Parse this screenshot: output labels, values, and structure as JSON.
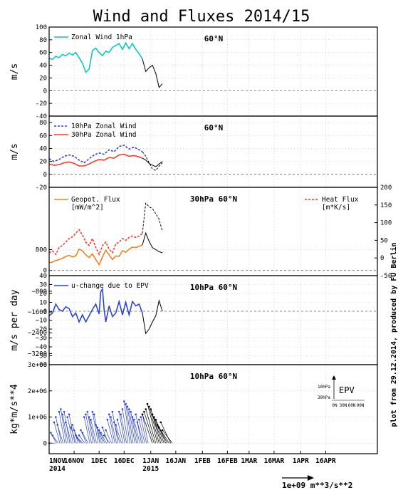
{
  "title": "Wind and Fluxes 2014/15",
  "credit": "plot from 29.12.2014, produced by FU Berlin",
  "x_axis": {
    "tick_labels": [
      "1NOV",
      "16NOV",
      "1DEC",
      "16DEC",
      "1JAN",
      "16JAN",
      "1FEB",
      "16FEB",
      "1MAR",
      "16MAR",
      "1APR",
      "16APR"
    ],
    "tick_days": [
      0,
      15,
      30,
      45,
      61,
      76,
      92,
      107,
      120,
      135,
      151,
      166
    ],
    "year_labels": [
      {
        "text": "2014",
        "day": 0
      },
      {
        "text": "2015",
        "day": 61
      }
    ],
    "xlim_days": [
      0,
      197
    ]
  },
  "colors": {
    "cyan": "#11c4be",
    "blue": "#2e44cc",
    "red": "#f03c32",
    "orange": "#f08222",
    "black": "#000000"
  },
  "reference_arrow": {
    "label": "1e+09  m**3/s**2"
  },
  "chart_data": [
    {
      "id": "p1",
      "type": "line",
      "annotation": "60°N",
      "ylabel": "m/s",
      "ylim": [
        -40,
        100
      ],
      "yticks": [
        -40,
        -20,
        0,
        20,
        40,
        60,
        80,
        100
      ],
      "zero_line": true,
      "legend": [
        {
          "name": "Zonal Wind 1hPa",
          "color": "cyan",
          "dash": false
        }
      ],
      "series": [
        {
          "name": "Zonal Wind 1hPa",
          "color": "cyan",
          "dash": false,
          "x": [
            0,
            2,
            4,
            6,
            8,
            10,
            12,
            14,
            16,
            18,
            20,
            22,
            24,
            26,
            28,
            30,
            32,
            34,
            36,
            38,
            40,
            42,
            44,
            46,
            48,
            50,
            52,
            54,
            56
          ],
          "y": [
            51,
            49,
            54,
            52,
            57,
            55,
            59,
            56,
            60,
            52,
            43,
            29,
            34,
            63,
            67,
            60,
            55,
            62,
            60,
            68,
            71,
            74,
            65,
            75,
            66,
            74,
            65,
            58,
            50
          ]
        },
        {
          "name": "Zonal Wind 1hPa forecast",
          "color": "black",
          "dash": false,
          "x": [
            56,
            58,
            60,
            62,
            64,
            66,
            68
          ],
          "y": [
            50,
            30,
            36,
            40,
            27,
            5,
            11
          ]
        }
      ]
    },
    {
      "id": "p2",
      "type": "line",
      "annotation": "60°N",
      "ylabel": "m/s",
      "ylim": [
        -20,
        90
      ],
      "yticks": [
        -20,
        0,
        20,
        40,
        60,
        80
      ],
      "zero_line": true,
      "legend": [
        {
          "name": "10hPa Zonal Wind",
          "color": "blue",
          "dash": true
        },
        {
          "name": "30hPa Zonal Wind",
          "color": "red",
          "dash": false
        }
      ],
      "series": [
        {
          "name": "10hPa Zonal Wind",
          "color": "blue",
          "dash": true,
          "x": [
            0,
            3,
            6,
            9,
            12,
            15,
            18,
            21,
            24,
            27,
            30,
            33,
            36,
            39,
            42,
            45,
            48,
            51,
            54,
            56
          ],
          "y": [
            24,
            20,
            23,
            28,
            30,
            28,
            22,
            18,
            24,
            30,
            33,
            31,
            38,
            35,
            43,
            45,
            39,
            42,
            38,
            35
          ]
        },
        {
          "name": "30hPa Zonal Wind",
          "color": "red",
          "dash": false,
          "x": [
            0,
            3,
            6,
            9,
            12,
            15,
            18,
            21,
            24,
            27,
            30,
            33,
            36,
            39,
            42,
            45,
            48,
            51,
            54,
            56
          ],
          "y": [
            16,
            14,
            15,
            18,
            19,
            17,
            13,
            13,
            16,
            20,
            23,
            22,
            26,
            25,
            30,
            31,
            28,
            29,
            27,
            25
          ]
        },
        {
          "name": "10hPa forecast",
          "color": "black",
          "dash": true,
          "x": [
            56,
            58,
            60,
            62,
            64,
            66,
            68
          ],
          "y": [
            35,
            28,
            18,
            8,
            6,
            13,
            18
          ]
        },
        {
          "name": "30hPa forecast",
          "color": "black",
          "dash": false,
          "x": [
            56,
            58,
            60,
            62,
            64,
            66,
            68
          ],
          "y": [
            25,
            22,
            17,
            14,
            12,
            16,
            20
          ]
        }
      ]
    },
    {
      "id": "p3",
      "type": "line",
      "annotation": "30hPa 60°N",
      "ylim": [
        -200,
        3200
      ],
      "yticks": [
        -3200,
        -2400,
        -1600,
        -800,
        0,
        800
      ],
      "ytick_labels": [
        "−3200",
        "−2400",
        "−1600",
        "−800",
        "0",
        "800"
      ],
      "y2lim": [
        -50,
        200
      ],
      "y2ticks": [
        -50,
        0,
        50,
        100,
        150,
        200
      ],
      "zero_line": true,
      "legend": [
        {
          "name": "Geopot. Flux",
          "sub": "[mW/m^2]",
          "color": "orange",
          "dash": false
        },
        {
          "name": "Heat Flux",
          "sub": "[m*K/s]",
          "color": "red",
          "dash": true
        }
      ],
      "series": [
        {
          "name": "Geopot. Flux",
          "color": "orange",
          "dash": false,
          "axis": "left",
          "x": [
            0,
            2,
            4,
            6,
            8,
            10,
            12,
            14,
            16,
            18,
            20,
            22,
            24,
            26,
            28,
            30,
            32,
            34,
            36,
            38,
            40,
            42,
            44,
            46,
            48,
            50,
            52,
            54,
            56
          ],
          "y": [
            300,
            320,
            380,
            420,
            470,
            540,
            580,
            520,
            560,
            820,
            760,
            600,
            500,
            640,
            420,
            220,
            520,
            780,
            600,
            420,
            560,
            540,
            760,
            700,
            820,
            900,
            880,
            930,
            980
          ]
        },
        {
          "name": "Heat Flux",
          "color": "red",
          "dash": true,
          "axis": "right",
          "x": [
            0,
            2,
            4,
            6,
            8,
            10,
            12,
            14,
            16,
            18,
            20,
            22,
            24,
            26,
            28,
            30,
            32,
            34,
            36,
            38,
            40,
            42,
            44,
            46,
            48,
            50,
            52,
            54,
            56
          ],
          "y": [
            15,
            20,
            10,
            30,
            35,
            45,
            55,
            60,
            70,
            80,
            65,
            45,
            35,
            55,
            30,
            10,
            35,
            45,
            25,
            15,
            40,
            45,
            55,
            50,
            58,
            62,
            58,
            62,
            70
          ]
        },
        {
          "name": "Geopot. Flux forecast",
          "color": "black",
          "dash": false,
          "axis": "left",
          "x": [
            56,
            58,
            60,
            62,
            64,
            66,
            68
          ],
          "y": [
            980,
            1440,
            1120,
            880,
            800,
            720,
            680
          ]
        },
        {
          "name": "Heat Flux forecast",
          "color": "black",
          "dash": true,
          "axis": "right",
          "x": [
            56,
            58,
            60,
            62,
            64,
            66,
            68
          ],
          "y": [
            70,
            155,
            145,
            140,
            125,
            110,
            75
          ]
        }
      ]
    },
    {
      "id": "p4",
      "type": "line",
      "annotation": "10hPa 60°N",
      "ylabel": "m/s per day",
      "ylim": [
        -60,
        40
      ],
      "yticks": [
        -60,
        -50,
        -40,
        -30,
        -20,
        -10,
        0,
        10,
        20,
        30,
        40
      ],
      "ytick_labels": [
        "−60",
        "−50",
        "−40",
        "−30",
        "−20",
        "−10",
        "0",
        "10",
        "20",
        "30",
        "40"
      ],
      "zero_line": true,
      "legend": [
        {
          "name": "u-change due to EPV",
          "color": "blue",
          "dash": false
        }
      ],
      "series": [
        {
          "name": "u-change due to EPV",
          "color": "blue",
          "dash": false,
          "x": [
            0,
            2,
            4,
            6,
            8,
            10,
            12,
            14,
            16,
            18,
            20,
            22,
            24,
            26,
            28,
            30,
            31,
            32,
            33,
            34,
            36,
            38,
            40,
            42,
            44,
            46,
            48,
            50,
            52,
            54,
            56
          ],
          "y": [
            -5,
            -2,
            8,
            2,
            0,
            5,
            3,
            -6,
            -2,
            -12,
            -4,
            -12,
            -5,
            2,
            8,
            -3,
            22,
            25,
            2,
            -12,
            6,
            -6,
            -2,
            11,
            -4,
            10,
            -4,
            11,
            6,
            8,
            -2
          ]
        },
        {
          "name": "u-change forecast",
          "color": "black",
          "dash": false,
          "x": [
            56,
            58,
            60,
            62,
            64,
            66,
            68
          ],
          "y": [
            -2,
            -25,
            -20,
            -12,
            -5,
            12,
            0
          ]
        }
      ]
    },
    {
      "id": "p5",
      "type": "scatter",
      "annotation": "10hPa 60°N",
      "ylabel": "kg*m/s**4",
      "ylim": [
        -400000,
        3000000
      ],
      "yticks": [
        0,
        1000000,
        2000000,
        3000000
      ],
      "ytick_labels": [
        "0",
        "1e+06",
        "2e+06",
        "3e+06"
      ],
      "inset": {
        "title": "EPV",
        "ylabels": [
          "10hPa",
          "30hPa"
        ],
        "xlabels": [
          "0N",
          "30N",
          "60N",
          "90N"
        ]
      },
      "series": [
        {
          "name": "EPV vectors",
          "color": "blue",
          "x": [
            0,
            1,
            2,
            3,
            4,
            5,
            6,
            7,
            8,
            9,
            10,
            11,
            12,
            13,
            14,
            15,
            16,
            17,
            18,
            19,
            20,
            21,
            22,
            23,
            24,
            25,
            26,
            27,
            28,
            29,
            30,
            31,
            32,
            33,
            34,
            35,
            36,
            37,
            38,
            39,
            40,
            41,
            42,
            43,
            44,
            45,
            46,
            47,
            48,
            49,
            50,
            51,
            52,
            53,
            54,
            55,
            56
          ],
          "y": [
            0,
            400000,
            300000,
            800000,
            1000000,
            700000,
            1200000,
            1300000,
            1100000,
            1200000,
            800000,
            1000000,
            1100000,
            600000,
            700000,
            500000,
            300000,
            200000,
            300000,
            500000,
            400000,
            1000000,
            1100000,
            1200000,
            1000000,
            900000,
            1200000,
            1100000,
            700000,
            600000,
            500000,
            400000,
            600000,
            300000,
            500000,
            900000,
            1100000,
            1000000,
            1200000,
            800000,
            700000,
            900000,
            1200000,
            1100000,
            1300000,
            1600000,
            1500000,
            1400000,
            1300000,
            1200000,
            1000000,
            900000,
            1100000,
            800000,
            900000,
            1000000,
            1100000
          ]
        },
        {
          "name": "EPV forecast vectors",
          "color": "black",
          "x": [
            56,
            57,
            58,
            59,
            60,
            61,
            62,
            63,
            64,
            65,
            66,
            67,
            68
          ],
          "y": [
            1100000,
            1200000,
            1300000,
            1500000,
            1400000,
            1300000,
            1100000,
            1000000,
            900000,
            700000,
            600000,
            800000,
            500000
          ]
        }
      ]
    }
  ]
}
